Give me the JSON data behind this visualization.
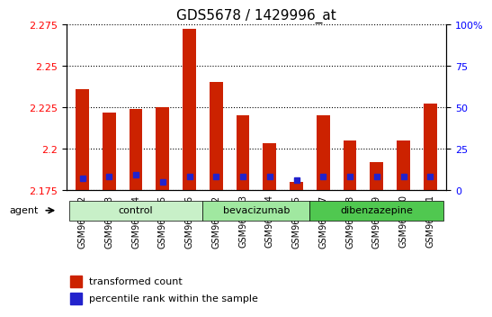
{
  "title": "GDS5678 / 1429996_at",
  "samples": [
    "GSM967852",
    "GSM967853",
    "GSM967854",
    "GSM967855",
    "GSM967856",
    "GSM967862",
    "GSM967863",
    "GSM967864",
    "GSM967865",
    "GSM967857",
    "GSM967858",
    "GSM967859",
    "GSM967860",
    "GSM967861"
  ],
  "transformed_count": [
    2.236,
    2.222,
    2.224,
    2.225,
    2.272,
    2.24,
    2.22,
    2.203,
    2.18,
    2.22,
    2.205,
    2.192,
    2.205,
    2.227
  ],
  "percentile_rank": [
    7,
    8,
    9,
    5,
    8,
    8,
    8,
    8,
    6,
    8,
    8,
    8,
    8,
    8
  ],
  "groups": [
    {
      "label": "control",
      "start": 0,
      "end": 5,
      "color": "#c8f0c8"
    },
    {
      "label": "bevacizumab",
      "start": 5,
      "end": 9,
      "color": "#a0e8a0"
    },
    {
      "label": "dibenzazepine",
      "start": 9,
      "end": 14,
      "color": "#50c850"
    }
  ],
  "ylim_left": [
    2.175,
    2.275
  ],
  "yticks_left": [
    2.175,
    2.2,
    2.225,
    2.25,
    2.275
  ],
  "yticks_right": [
    0,
    25,
    50,
    75,
    100
  ],
  "ylim_right": [
    0,
    100
  ],
  "bar_color": "#cc2200",
  "dot_color": "#2222cc",
  "bg_color": "#f0f0f0",
  "bar_width": 0.5,
  "baseline": 2.175,
  "percentile_scale_factor": 0.001,
  "legend_labels": [
    "transformed count",
    "percentile rank within the sample"
  ],
  "xlabel_agent": "agent",
  "title_fontsize": 11
}
